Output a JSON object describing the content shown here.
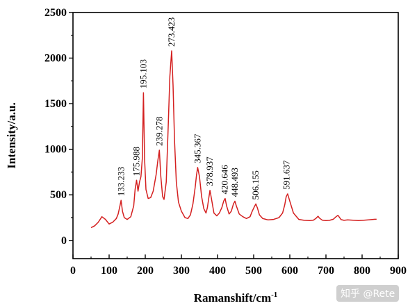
{
  "chart_data": {
    "type": "line",
    "title": "",
    "xlabel": "Ramanshift/cm",
    "xlabel_superscript": "-1",
    "ylabel": "Intensity/a.u.",
    "xlim": [
      0,
      900
    ],
    "ylim": [
      -200,
      2500
    ],
    "x_ticks": [
      0,
      100,
      200,
      300,
      400,
      500,
      600,
      700,
      800,
      900
    ],
    "y_ticks": [
      0,
      500,
      1000,
      1500,
      2000,
      2500
    ],
    "grid": false,
    "legend": "none",
    "line_color": "#d42020",
    "peaks": [
      {
        "x": 133.233,
        "y": 440,
        "label": "133.233"
      },
      {
        "x": 175.988,
        "y": 660,
        "label": "175.988"
      },
      {
        "x": 195.103,
        "y": 1620,
        "label": "195.103"
      },
      {
        "x": 239.278,
        "y": 990,
        "label": "239.278"
      },
      {
        "x": 273.423,
        "y": 2080,
        "label": "273.423"
      },
      {
        "x": 345.367,
        "y": 800,
        "label": "345.367"
      },
      {
        "x": 378.937,
        "y": 550,
        "label": "378.937"
      },
      {
        "x": 420.646,
        "y": 460,
        "label": "420.646"
      },
      {
        "x": 448.493,
        "y": 430,
        "label": "448.493"
      },
      {
        "x": 506.155,
        "y": 400,
        "label": "506.155"
      },
      {
        "x": 591.637,
        "y": 510,
        "label": "591.637"
      }
    ],
    "series": [
      {
        "x": [
          50,
          60,
          70,
          80,
          90,
          100,
          110,
          120,
          125,
          130,
          133,
          137,
          142,
          150,
          160,
          168,
          172,
          176,
          180,
          184,
          188,
          192,
          195,
          198,
          202,
          208,
          215,
          222,
          230,
          235,
          239,
          243,
          248,
          252,
          258,
          263,
          268,
          273,
          277,
          281,
          286,
          292,
          300,
          310,
          318,
          325,
          332,
          338,
          342,
          345,
          350,
          356,
          362,
          368,
          372,
          376,
          379,
          383,
          390,
          398,
          405,
          412,
          417,
          421,
          425,
          432,
          438,
          444,
          448,
          452,
          460,
          470,
          480,
          490,
          496,
          502,
          506,
          510,
          516,
          525,
          540,
          555,
          570,
          580,
          586,
          590,
          594,
          600,
          610,
          625,
          640,
          655,
          665,
          672,
          678,
          682,
          690,
          700,
          710,
          720,
          728,
          733,
          737,
          742,
          750,
          760,
          775,
          790,
          805,
          820,
          835,
          840
        ],
        "y": [
          140,
          160,
          200,
          260,
          230,
          180,
          200,
          240,
          290,
          380,
          440,
          320,
          250,
          230,
          260,
          380,
          560,
          660,
          540,
          640,
          700,
          900,
          1620,
          900,
          560,
          460,
          470,
          540,
          720,
          880,
          990,
          700,
          480,
          450,
          640,
          1200,
          1800,
          2080,
          1700,
          1100,
          640,
          420,
          320,
          250,
          240,
          280,
          400,
          580,
          720,
          800,
          700,
          480,
          350,
          300,
          360,
          470,
          550,
          460,
          300,
          270,
          300,
          360,
          430,
          460,
          380,
          290,
          320,
          400,
          430,
          380,
          290,
          260,
          240,
          260,
          320,
          370,
          400,
          360,
          280,
          240,
          225,
          230,
          250,
          300,
          390,
          480,
          510,
          430,
          300,
          230,
          220,
          218,
          222,
          240,
          265,
          245,
          222,
          218,
          220,
          232,
          260,
          275,
          255,
          228,
          220,
          225,
          222,
          218,
          222,
          226,
          232,
          232
        ]
      }
    ]
  },
  "watermark_text": "知乎 @Rete"
}
